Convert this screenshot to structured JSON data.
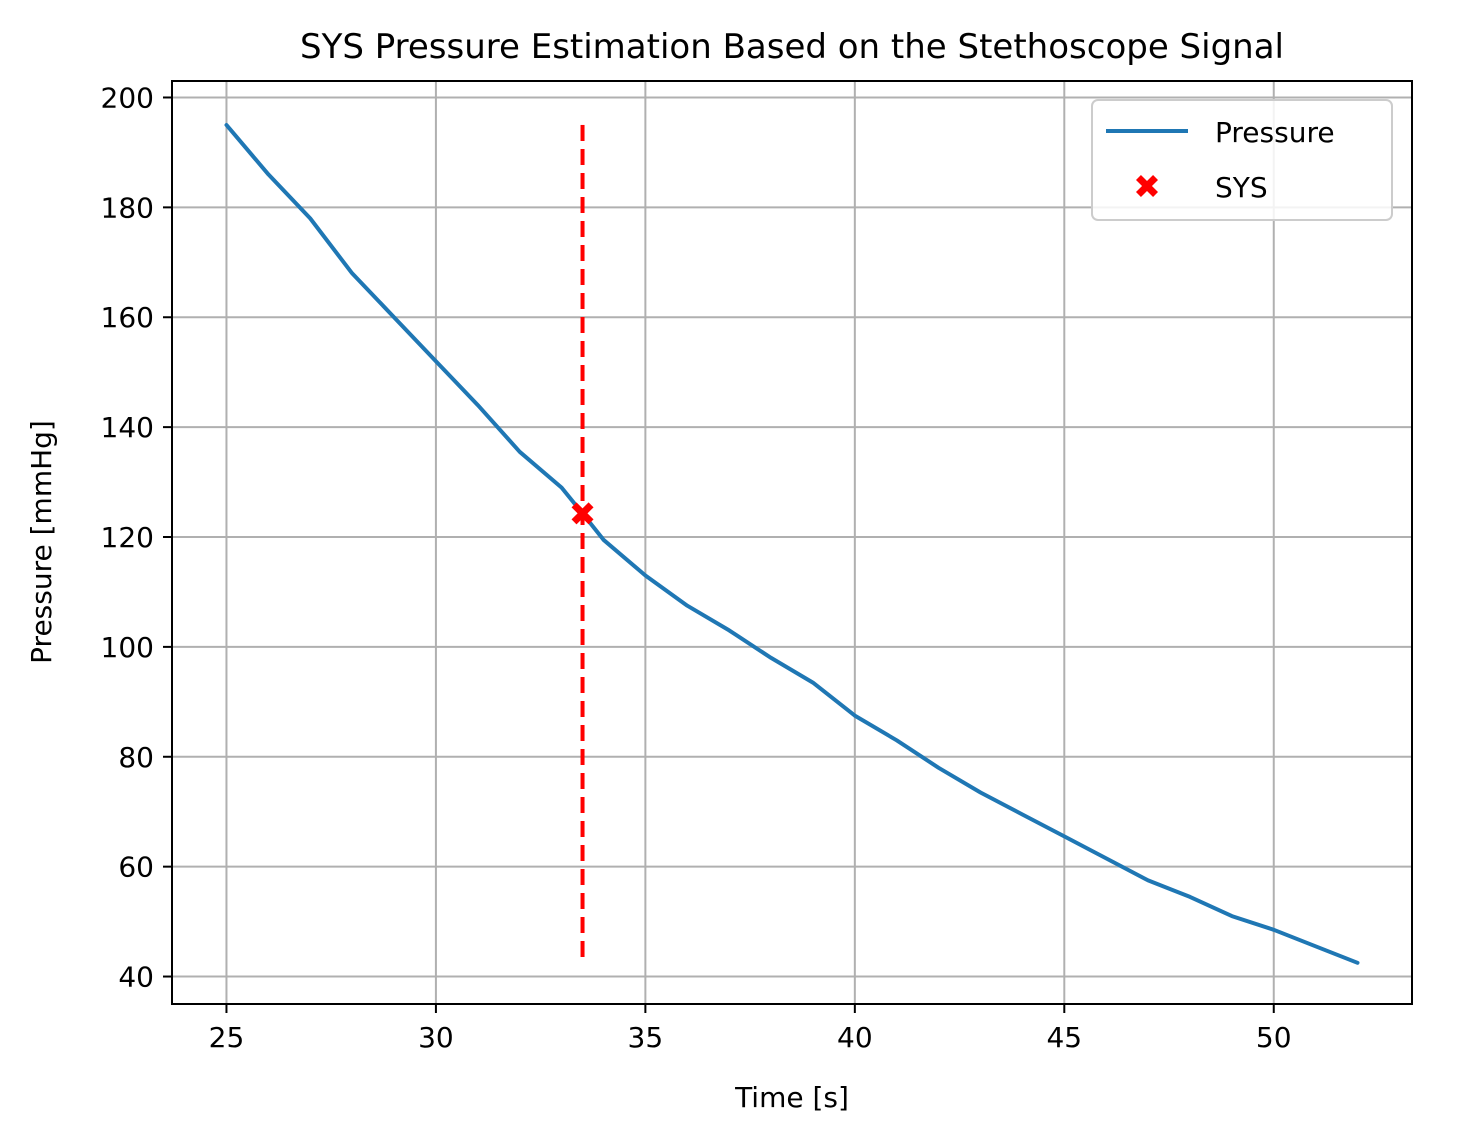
{
  "chart_data": {
    "type": "line",
    "title": "SYS Pressure Estimation Based on the Stethoscope Signal",
    "xlabel": "Time [s]",
    "ylabel": "Pressure [mmHg]",
    "xlim": [
      23.7,
      53.3
    ],
    "ylim": [
      35,
      203
    ],
    "xticks": [
      25,
      30,
      35,
      40,
      45,
      50
    ],
    "yticks": [
      40,
      60,
      80,
      100,
      120,
      140,
      160,
      180,
      200
    ],
    "grid": true,
    "legend": {
      "placement": "top-right",
      "entries": [
        "Pressure",
        "SYS"
      ]
    },
    "series": [
      {
        "name": "Pressure",
        "color": "#1f77b4",
        "x": [
          25,
          26,
          27,
          28,
          29,
          30,
          31,
          32,
          33,
          33.5,
          34,
          35,
          36,
          37,
          38,
          39,
          40,
          41,
          42,
          43,
          44,
          45,
          46,
          47,
          48,
          49,
          50,
          51,
          52
        ],
        "y": [
          195,
          186,
          178,
          168,
          160,
          152,
          144,
          135.5,
          129,
          124.3,
          119.5,
          113,
          107.5,
          103,
          98,
          93.5,
          87.5,
          83,
          78,
          73.5,
          69.5,
          65.5,
          61.5,
          57.5,
          54.5,
          51,
          48.5,
          45.5,
          42.5
        ]
      },
      {
        "name": "SYS",
        "color": "#ff0000",
        "marker": "X",
        "x": [
          33.5
        ],
        "y": [
          124.3
        ]
      }
    ],
    "vline": {
      "x": 33.5,
      "ymin": 42.5,
      "ymax": 195,
      "color": "#ff0000",
      "style": "dashed"
    }
  }
}
